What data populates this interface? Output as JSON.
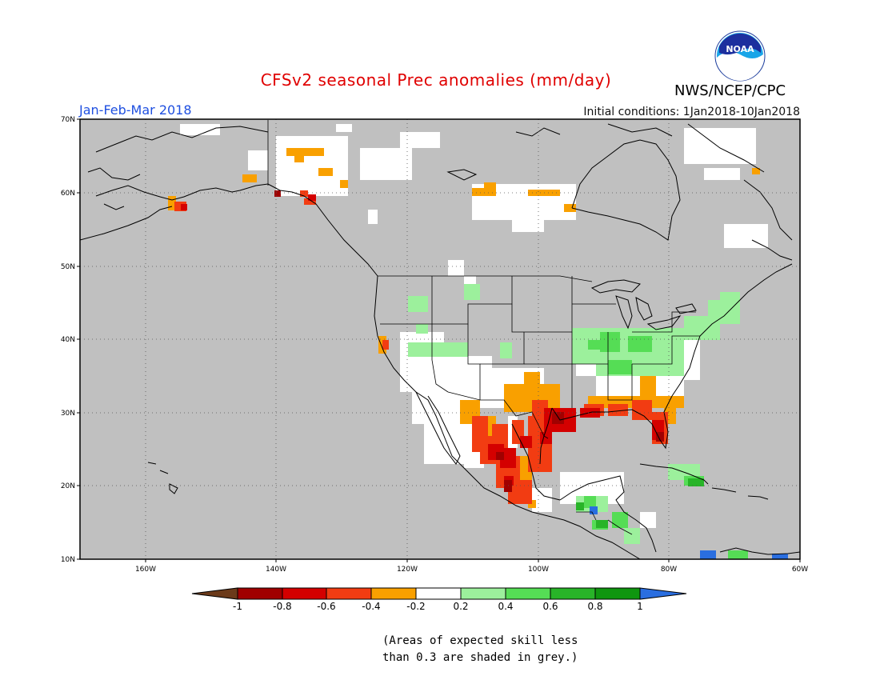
{
  "header": {
    "title": "CFSv2 seasonal Prec anomalies (mm/day)",
    "season": "Jan-Feb-Mar 2018",
    "initial_conditions": "Initial conditions: 1Jan2018-10Jan2018",
    "agency": "NWS/NCEP/CPC",
    "logo_text": "NOAA"
  },
  "map": {
    "lat_labels": [
      "70N",
      "60N",
      "50N",
      "40N",
      "30N",
      "20N",
      "10N"
    ],
    "lon_labels": [
      "160W",
      "140W",
      "120W",
      "100W",
      "80W",
      "60W"
    ],
    "grey_meaning": "skill < 0.3"
  },
  "colorbar": {
    "labels": [
      "-1",
      "-0.8",
      "-0.6",
      "-0.4",
      "-0.2",
      "0.2",
      "0.4",
      "0.6",
      "0.8",
      "1"
    ],
    "colors": {
      "lt_-1": "#6b3a1a",
      "-1_-0.8": "#a00000",
      "-0.8_-0.6": "#d40000",
      "-0.6_-0.4": "#f23c12",
      "-0.4_-0.2": "#f9a000",
      "-0.2_0.2": "#ffffff",
      "0.2_0.4": "#9cf09c",
      "0.4_0.6": "#55dd55",
      "0.6_0.8": "#28b428",
      "0.8_1": "#0f960f",
      "gt_1": "#2a6ee0"
    }
  },
  "note": {
    "line1": "(Areas of expected skill less",
    "line2": "than 0.3 are shaded in grey.)"
  }
}
